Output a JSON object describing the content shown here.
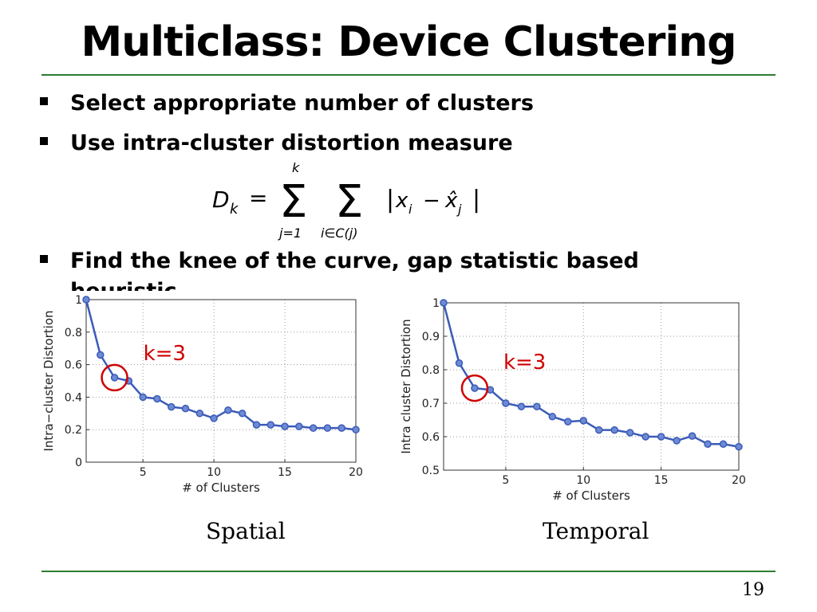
{
  "slide": {
    "title": "Multiclass: Device Clustering",
    "bullets": [
      "Select appropriate number of clusters",
      "Use intra-cluster distortion measure",
      "Find the knee of the curve, gap statistic based heuristic"
    ],
    "formula": {
      "lhs_sym": "D",
      "lhs_sub": "k",
      "sum1_top": "k",
      "sum1_bottom": "j=1",
      "sum2_bottom": "i∈C(j)",
      "abs_x": "x",
      "abs_sub_i": "i",
      "abs_minus": "−",
      "abs_xhat": "x̂",
      "abs_sub_j": "j"
    },
    "captions": {
      "spatial": "Spatial",
      "temporal": "Temporal"
    },
    "page_number": "19",
    "colors": {
      "rule": "#2e7d32",
      "series": "#3b5bb8",
      "annotation": "#d00000"
    }
  },
  "chart_data": [
    {
      "type": "line",
      "xlabel": "# of Clusters",
      "ylabel": "Intra−cluster Distortion",
      "xlim": [
        1,
        20
      ],
      "ylim": [
        0,
        1
      ],
      "xticks": [
        5,
        10,
        15,
        20
      ],
      "yticks": [
        0,
        0.2,
        0.4,
        0.6,
        0.8,
        1
      ],
      "ytick_labels": [
        "0",
        "0.2",
        "0.4",
        "0.6",
        "0.8",
        "1"
      ],
      "grid": true,
      "annotation": {
        "text": "k=3",
        "x": 3,
        "y": 0.52
      },
      "x": [
        1,
        2,
        3,
        4,
        5,
        6,
        7,
        8,
        9,
        10,
        11,
        12,
        13,
        14,
        15,
        16,
        17,
        18,
        19,
        20
      ],
      "series": [
        {
          "values": [
            1.0,
            0.66,
            0.52,
            0.5,
            0.4,
            0.39,
            0.34,
            0.33,
            0.3,
            0.27,
            0.32,
            0.3,
            0.23,
            0.23,
            0.22,
            0.22,
            0.21,
            0.21,
            0.21,
            0.2
          ]
        }
      ]
    },
    {
      "type": "line",
      "xlabel": "# of Clusters",
      "ylabel": "Intra cluster Distortion",
      "xlim": [
        1,
        20
      ],
      "ylim": [
        0.5,
        1
      ],
      "xticks": [
        5,
        10,
        15,
        20
      ],
      "yticks": [
        0.5,
        0.6,
        0.7,
        0.8,
        0.9,
        1
      ],
      "ytick_labels": [
        "0.5",
        "0.6",
        "0.7",
        "0.8",
        "0.9",
        "1"
      ],
      "grid": true,
      "annotation": {
        "text": "k=3",
        "x": 3,
        "y": 0.745
      },
      "x": [
        1,
        2,
        3,
        4,
        5,
        6,
        7,
        8,
        9,
        10,
        11,
        12,
        13,
        14,
        15,
        16,
        17,
        18,
        19,
        20
      ],
      "series": [
        {
          "values": [
            1.0,
            0.82,
            0.745,
            0.74,
            0.7,
            0.69,
            0.69,
            0.66,
            0.645,
            0.648,
            0.62,
            0.62,
            0.612,
            0.6,
            0.6,
            0.588,
            0.602,
            0.578,
            0.578,
            0.57
          ]
        }
      ]
    }
  ]
}
